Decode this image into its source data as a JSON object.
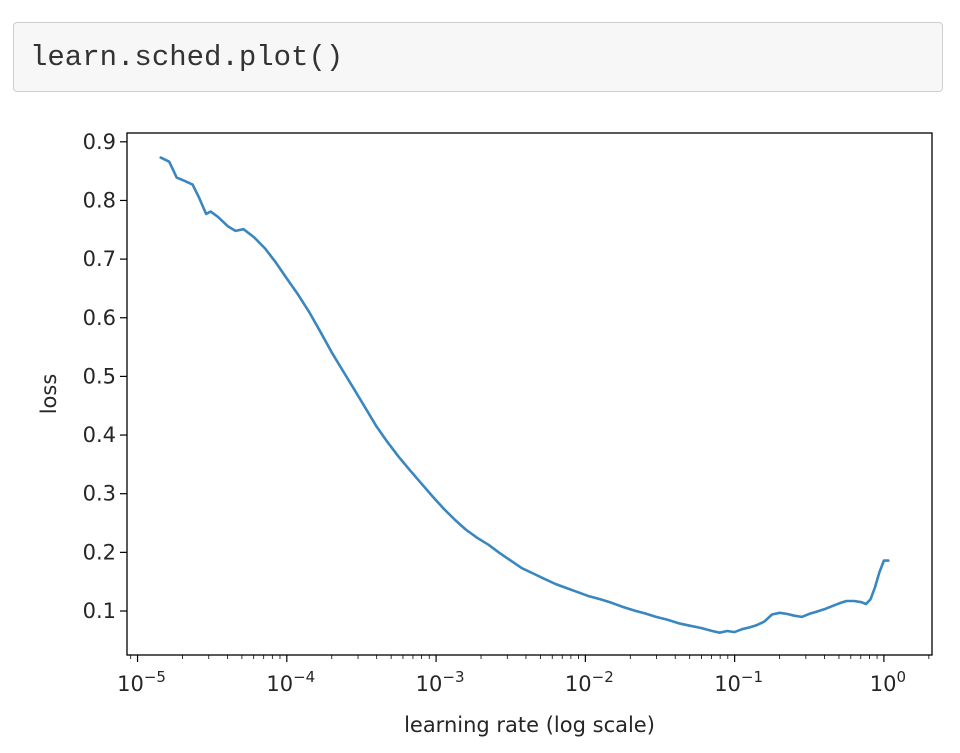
{
  "cell": {
    "code": "learn.sched.plot()"
  },
  "colors": {
    "line": "#3a87c0",
    "axes": "#000000",
    "cell_bg": "#f7f7f7",
    "cell_border": "#cfcfcf"
  },
  "chart_data": {
    "type": "line",
    "xscale": "log",
    "xlabel": "learning rate (log scale)",
    "ylabel": "loss",
    "xlim": [
      8.5e-06,
      2.1
    ],
    "ylim": [
      0.025,
      0.915
    ],
    "yticks": [
      {
        "value": 0.1,
        "label": "0.1"
      },
      {
        "value": 0.2,
        "label": "0.2"
      },
      {
        "value": 0.3,
        "label": "0.3"
      },
      {
        "value": 0.4,
        "label": "0.4"
      },
      {
        "value": 0.5,
        "label": "0.5"
      },
      {
        "value": 0.6,
        "label": "0.6"
      },
      {
        "value": 0.7,
        "label": "0.7"
      },
      {
        "value": 0.8,
        "label": "0.8"
      },
      {
        "value": 0.9,
        "label": "0.9"
      }
    ],
    "xticks": [
      {
        "value": 1e-05,
        "base": "10",
        "exp": "−5"
      },
      {
        "value": 0.0001,
        "base": "10",
        "exp": "−4"
      },
      {
        "value": 0.001,
        "base": "10",
        "exp": "−3"
      },
      {
        "value": 0.01,
        "base": "10",
        "exp": "−2"
      },
      {
        "value": 0.1,
        "base": "10",
        "exp": "−1"
      },
      {
        "value": 1,
        "base": "10",
        "exp": "0"
      }
    ],
    "grid": false,
    "x": [
      1.43e-05,
      1.63e-05,
      1.83e-05,
      2.08e-05,
      2.34e-05,
      2.58e-05,
      2.88e-05,
      3.09e-05,
      3.46e-05,
      4.03e-05,
      4.53e-05,
      5.13e-05,
      6.05e-05,
      7.15e-05,
      8.45e-05,
      0.0001,
      0.000118,
      0.000141,
      0.000168,
      0.000199,
      0.000237,
      0.000281,
      0.000333,
      0.000398,
      0.000473,
      0.000562,
      0.000668,
      0.000794,
      0.000944,
      0.00112,
      0.00133,
      0.00158,
      0.00188,
      0.00224,
      0.00266,
      0.00316,
      0.00376,
      0.00447,
      0.00531,
      0.00631,
      0.0075,
      0.00891,
      0.0106,
      0.0126,
      0.015,
      0.0178,
      0.0211,
      0.0251,
      0.0298,
      0.0355,
      0.0422,
      0.0501,
      0.0596,
      0.0708,
      0.0794,
      0.0891,
      0.1,
      0.112,
      0.126,
      0.141,
      0.158,
      0.178,
      0.2,
      0.224,
      0.251,
      0.282,
      0.316,
      0.355,
      0.398,
      0.447,
      0.501,
      0.562,
      0.631,
      0.708,
      0.759,
      0.813,
      0.871,
      0.933,
      1.0,
      1.07
    ],
    "y": [
      0.873,
      0.866,
      0.839,
      0.833,
      0.827,
      0.805,
      0.777,
      0.781,
      0.772,
      0.756,
      0.748,
      0.751,
      0.737,
      0.718,
      0.694,
      0.667,
      0.641,
      0.61,
      0.576,
      0.542,
      0.51,
      0.479,
      0.448,
      0.415,
      0.388,
      0.363,
      0.34,
      0.318,
      0.296,
      0.275,
      0.256,
      0.239,
      0.225,
      0.213,
      0.199,
      0.186,
      0.173,
      0.164,
      0.155,
      0.146,
      0.139,
      0.132,
      0.125,
      0.12,
      0.114,
      0.107,
      0.101,
      0.096,
      0.09,
      0.085,
      0.079,
      0.075,
      0.071,
      0.066,
      0.063,
      0.066,
      0.064,
      0.069,
      0.072,
      0.076,
      0.082,
      0.094,
      0.097,
      0.095,
      0.092,
      0.09,
      0.095,
      0.099,
      0.103,
      0.108,
      0.113,
      0.117,
      0.117,
      0.115,
      0.112,
      0.12,
      0.14,
      0.166,
      0.186,
      0.186
    ]
  }
}
